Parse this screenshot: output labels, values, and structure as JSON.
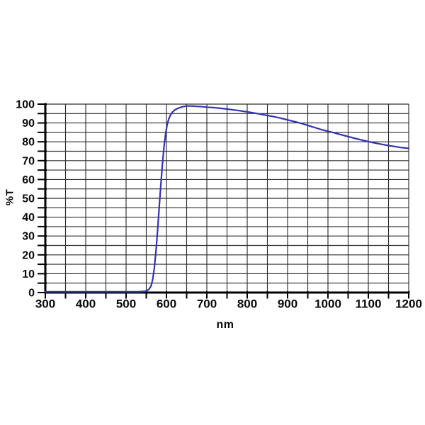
{
  "page": {
    "background": "#ffffff"
  },
  "chart_data": {
    "type": "line",
    "title": "",
    "xlabel": "nm",
    "ylabel": "%T",
    "xlim": [
      300,
      1200
    ],
    "ylim": [
      0,
      100
    ],
    "x_label_ticks": [
      300,
      400,
      500,
      600,
      700,
      800,
      900,
      1000,
      1100,
      1200
    ],
    "x_minor_tick_step": 50,
    "y_label_ticks": [
      0,
      10,
      20,
      30,
      40,
      50,
      60,
      70,
      80,
      90,
      100
    ],
    "y_minor_tick_step": 5,
    "grid": {
      "visible": true,
      "x_step": 50,
      "y_step": 5,
      "color": "#2d2d2d"
    },
    "axis_color": "#000000",
    "legend": "none",
    "series": [
      {
        "name": "filter-transmission",
        "color": "#3333b4",
        "points": [
          [
            300,
            0.4
          ],
          [
            350,
            0.4
          ],
          [
            400,
            0.4
          ],
          [
            450,
            0.4
          ],
          [
            500,
            0.4
          ],
          [
            530,
            0.4
          ],
          [
            545,
            0.6
          ],
          [
            552,
            1
          ],
          [
            557,
            1.8
          ],
          [
            562,
            3.5
          ],
          [
            566,
            7
          ],
          [
            570,
            13
          ],
          [
            574,
            22
          ],
          [
            578,
            33
          ],
          [
            582,
            45
          ],
          [
            586,
            57
          ],
          [
            590,
            68
          ],
          [
            594,
            77.5
          ],
          [
            598,
            84.5
          ],
          [
            602,
            89.3
          ],
          [
            606,
            92.3
          ],
          [
            610,
            94.2
          ],
          [
            615,
            95.8
          ],
          [
            620,
            96.8
          ],
          [
            625,
            97.4
          ],
          [
            630,
            97.9
          ],
          [
            640,
            98.6
          ],
          [
            650,
            99
          ],
          [
            662,
            99
          ],
          [
            675,
            98.8
          ],
          [
            690,
            98.6
          ],
          [
            700,
            98.4
          ],
          [
            715,
            98.2
          ],
          [
            730,
            97.9
          ],
          [
            745,
            97.5
          ],
          [
            760,
            97.1
          ],
          [
            775,
            96.7
          ],
          [
            790,
            96.2
          ],
          [
            805,
            95.7
          ],
          [
            820,
            95.2
          ],
          [
            835,
            94.6
          ],
          [
            850,
            94
          ],
          [
            865,
            93.4
          ],
          [
            880,
            92.7
          ],
          [
            895,
            91.9
          ],
          [
            910,
            91.1
          ],
          [
            925,
            90.3
          ],
          [
            940,
            89.4
          ],
          [
            955,
            88.4
          ],
          [
            970,
            87.4
          ],
          [
            985,
            86.4
          ],
          [
            1000,
            85.6
          ],
          [
            1015,
            84.8
          ],
          [
            1030,
            83.9
          ],
          [
            1045,
            83.1
          ],
          [
            1060,
            82.2
          ],
          [
            1075,
            81.4
          ],
          [
            1090,
            80.6
          ],
          [
            1105,
            79.9
          ],
          [
            1120,
            79.2
          ],
          [
            1135,
            78.6
          ],
          [
            1150,
            78
          ],
          [
            1165,
            77.5
          ],
          [
            1180,
            77
          ],
          [
            1200,
            76.5
          ]
        ]
      }
    ]
  }
}
